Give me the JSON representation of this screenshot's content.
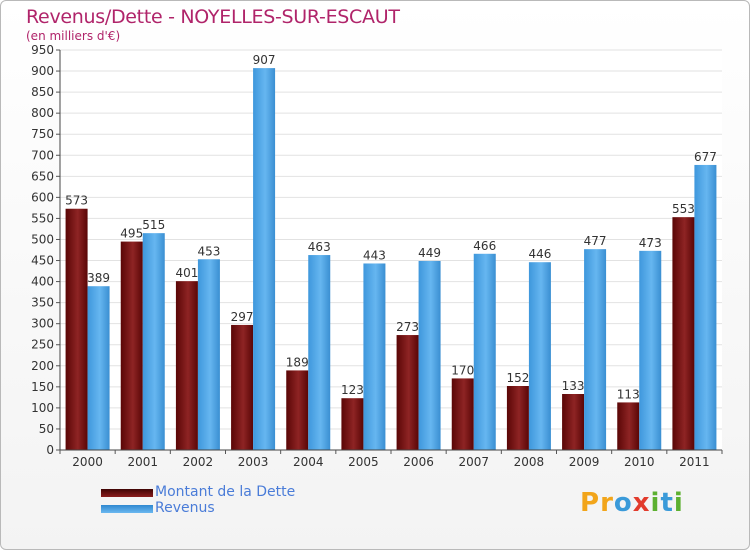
{
  "title": "Revenus/Dette - NOYELLES-SUR-ESCAUT",
  "subtitle": "(en milliers d'€)",
  "chart_data": {
    "type": "bar",
    "title": "Revenus/Dette - NOYELLES-SUR-ESCAUT",
    "ylabel": "(en milliers d'€)",
    "xlabel": "",
    "categories": [
      "2000",
      "2001",
      "2002",
      "2003",
      "2004",
      "2005",
      "2006",
      "2007",
      "2008",
      "2009",
      "2010",
      "2011"
    ],
    "series": [
      {
        "name": "Montant de la Dette",
        "color": "#7a1010",
        "values": [
          573,
          495,
          401,
          297,
          189,
          123,
          273,
          170,
          152,
          133,
          113,
          553
        ]
      },
      {
        "name": "Revenus",
        "color": "#4aa3e6",
        "values": [
          389,
          515,
          453,
          907,
          463,
          443,
          449,
          466,
          446,
          477,
          473,
          677
        ]
      }
    ],
    "ylim": [
      0,
      950
    ],
    "yticks": [
      0,
      50,
      100,
      150,
      200,
      250,
      300,
      350,
      400,
      450,
      500,
      550,
      600,
      650,
      700,
      750,
      800,
      850,
      900,
      950
    ],
    "grid": true,
    "legend": "bottom-left"
  },
  "legend": {
    "items": [
      {
        "label": "Montant de la Dette",
        "color": "#6b0a0a"
      },
      {
        "label": "Revenus",
        "color": "#4aa3e6"
      }
    ]
  },
  "logo": {
    "letters": [
      "P",
      "r",
      "o",
      "x",
      "i",
      "t",
      "i"
    ],
    "colors": [
      "#f2a51a",
      "#f2a51a",
      "#3a9ad9",
      "#e23b2c",
      "#5cb030",
      "#3a9ad9",
      "#5cb030"
    ]
  }
}
